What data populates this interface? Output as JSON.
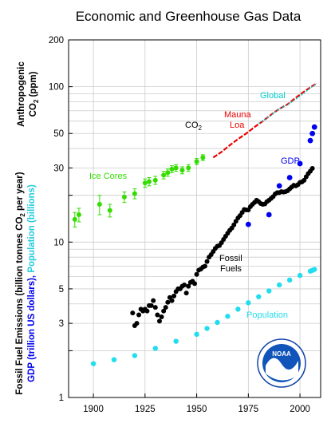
{
  "chart_data": {
    "type": "scatter",
    "title": "Economic and Greenhouse Gas Data",
    "xlim": [
      1888,
      2010
    ],
    "ylim": [
      1,
      200
    ],
    "yscale": "log",
    "grid": true,
    "x_ticks": [
      1900,
      1925,
      1950,
      1975,
      2000
    ],
    "y_ticks": [
      1,
      2,
      3,
      5,
      10,
      20,
      30,
      50,
      100,
      200
    ],
    "y_ticks_labeled": [
      1,
      3,
      5,
      10,
      30,
      50,
      100,
      200
    ],
    "ylabel_top_line1": "Anthropogenic",
    "ylabel_top_line2": "CO",
    "ylabel_top_line2_sub": "2",
    "ylabel_top_line2_end": " (ppm)",
    "ylabel_bottom_line1": "Fossil Fuel Emissions (billion tonnes CO",
    "ylabel_bottom_line1_sub": "2",
    "ylabel_bottom_line1_end": " per year)",
    "ylabel_bottom_line2a": "GDP (trillion US dollars)",
    "ylabel_bottom_line2b": ", ",
    "ylabel_bottom_line2c": "Population (billions)",
    "annotations": {
      "global": "Global",
      "co2": "CO",
      "co2_sub": "2",
      "mauna_loa_1": "Mauna",
      "mauna_loa_2": "Loa",
      "ice_cores": "Ice Cores",
      "gdp": "GDP",
      "fossil_1": "Fossil",
      "fossil_2": "Fuels",
      "population": "Population",
      "noaa": "NOAA"
    },
    "colors": {
      "ice_cores": "#33dd00",
      "mauna_loa": "#ee0000",
      "global": "#00cccc",
      "gdp": "#0000ee",
      "fossil": "#000000",
      "population": "#22ddee",
      "grid": "#cccccc"
    },
    "series": [
      {
        "name": "Ice Cores",
        "x": [
          1891,
          1893,
          1903,
          1908,
          1915,
          1920,
          1925,
          1927,
          1930,
          1934,
          1936,
          1938,
          1940,
          1943,
          1946,
          1950,
          1953
        ],
        "y": [
          14,
          15,
          17.5,
          16,
          19.5,
          20.5,
          24,
          24.5,
          25,
          27,
          28,
          29.5,
          30,
          29,
          30,
          33,
          35
        ],
        "err": [
          1.5,
          1.5,
          2.5,
          1.5,
          1.5,
          1.5,
          1.5,
          1.5,
          1.5,
          1.5,
          1.5,
          1.5,
          1.5,
          1.5,
          1.5,
          1.5,
          1.5
        ]
      },
      {
        "name": "Mauna Loa",
        "x": [
          1958,
          1962,
          1966,
          1970,
          1974,
          1978,
          1982,
          1986,
          1990,
          1994,
          1998,
          2002,
          2006,
          2008
        ],
        "y": [
          35,
          38,
          42,
          46,
          50,
          55,
          60,
          66,
          72,
          77,
          85,
          93,
          101,
          105
        ]
      },
      {
        "name": "Global",
        "x": [
          1980,
          1985,
          1990,
          1995,
          2000,
          2005,
          2008
        ],
        "y": [
          58,
          64,
          72,
          78,
          87,
          98,
          105
        ]
      },
      {
        "name": "Fossil Fuels",
        "x": [
          1919,
          1920,
          1921,
          1922,
          1923,
          1924,
          1925,
          1926,
          1927,
          1928,
          1929,
          1930,
          1931,
          1932,
          1933,
          1934,
          1935,
          1936,
          1937,
          1938,
          1939,
          1940,
          1941,
          1942,
          1943,
          1944,
          1945,
          1946,
          1947,
          1948,
          1949,
          1950,
          1951,
          1952,
          1953,
          1954,
          1955,
          1956,
          1957,
          1958,
          1959,
          1960,
          1961,
          1962,
          1963,
          1964,
          1965,
          1966,
          1967,
          1968,
          1969,
          1970,
          1971,
          1972,
          1973,
          1974,
          1975,
          1976,
          1977,
          1978,
          1979,
          1980,
          1981,
          1982,
          1983,
          1984,
          1985,
          1986,
          1987,
          1988,
          1989,
          1990,
          1991,
          1992,
          1993,
          1994,
          1995,
          1996,
          1997,
          1998,
          1999,
          2000,
          2001,
          2002,
          2003,
          2004,
          2005,
          2006
        ],
        "y": [
          3.5,
          2.9,
          3.0,
          3.4,
          3.7,
          3.6,
          3.7,
          3.6,
          3.9,
          3.9,
          4.2,
          3.8,
          3.4,
          3.1,
          3.3,
          3.6,
          3.8,
          4.1,
          4.4,
          4.2,
          4.5,
          4.8,
          5.0,
          5.0,
          5.2,
          5.3,
          4.7,
          5.2,
          5.5,
          5.6,
          5.4,
          6.2,
          6.6,
          6.7,
          6.9,
          7.0,
          7.5,
          8.0,
          8.3,
          8.7,
          9.1,
          9.4,
          9.5,
          9.9,
          10.4,
          10.9,
          11.4,
          11.9,
          12.3,
          12.9,
          13.6,
          14.3,
          14.8,
          15.5,
          16.2,
          16.1,
          16.1,
          16.9,
          17.5,
          18.0,
          18.6,
          18.2,
          17.7,
          17.5,
          17.6,
          18.2,
          18.6,
          19.1,
          19.6,
          20.4,
          20.8,
          20.8,
          21.1,
          21.0,
          21.1,
          21.4,
          22.0,
          22.6,
          23.2,
          23.0,
          23.4,
          24.2,
          24.4,
          25.0,
          26.3,
          27.6,
          28.6,
          29.8
        ]
      },
      {
        "name": "GDP",
        "x": [
          1975,
          1985,
          1990,
          1995,
          2000,
          2005,
          2006,
          2007
        ],
        "y": [
          13,
          15,
          23,
          26,
          32,
          45,
          50,
          55
        ]
      },
      {
        "name": "Population",
        "x": [
          1900,
          1910,
          1920,
          1930,
          1940,
          1950,
          1955,
          1960,
          1965,
          1970,
          1975,
          1980,
          1985,
          1990,
          1995,
          2000,
          2005,
          2006,
          2007
        ],
        "y": [
          1.65,
          1.75,
          1.86,
          2.07,
          2.3,
          2.55,
          2.78,
          3.04,
          3.33,
          3.7,
          4.07,
          4.45,
          4.85,
          5.3,
          5.7,
          6.1,
          6.5,
          6.58,
          6.67
        ]
      }
    ]
  }
}
